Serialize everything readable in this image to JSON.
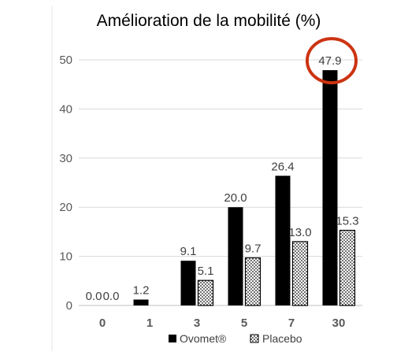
{
  "chart_data": {
    "type": "bar",
    "title": "Amélioration de la mobilité (%)",
    "categories": [
      "0",
      "1",
      "3",
      "5",
      "7",
      "30"
    ],
    "series": [
      {
        "name": "Ovomet®",
        "values": [
          0.0,
          1.2,
          9.1,
          20.0,
          26.4,
          47.9
        ],
        "labels": [
          "0.0",
          "1.2",
          "9.1",
          "20.0",
          "26.4",
          "47.9"
        ],
        "fill": "solid",
        "color": "#000000"
      },
      {
        "name": "Placebo",
        "values": [
          0.0,
          0.0,
          5.1,
          9.7,
          13.0,
          15.3
        ],
        "labels": [
          "0.0",
          "",
          "5.1",
          "9.7",
          "13.0",
          "15.3"
        ],
        "fill": "dotted",
        "color": "#000000"
      }
    ],
    "y_ticks": [
      "0",
      "10",
      "20",
      "30",
      "40",
      "50"
    ],
    "ylim": [
      0,
      52
    ],
    "grid": true,
    "legend_position": "bottom",
    "highlight": {
      "series": "Ovomet®",
      "category": "30",
      "shape": "circle",
      "color": "#cc3311"
    }
  }
}
